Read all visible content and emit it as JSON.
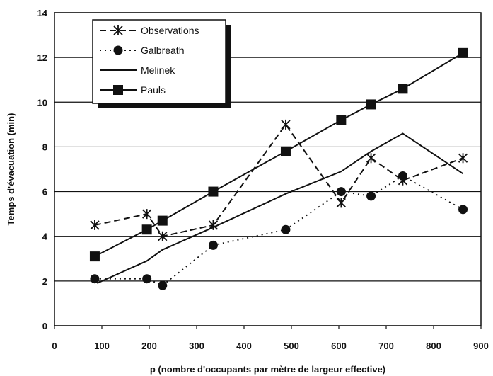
{
  "chart_data": {
    "type": "line",
    "title": "",
    "xlabel": "p (nombre d'occupants par mètre de largeur effective)",
    "ylabel": "Temps d'évacuation (min)",
    "xlim": [
      0,
      900
    ],
    "ylim": [
      0,
      14
    ],
    "xticks": [
      "0",
      "100",
      "200",
      "300",
      "400",
      "500",
      "600",
      "700",
      "800",
      "900"
    ],
    "yticks": [
      "0",
      "2",
      "4",
      "6",
      "8",
      "10",
      "12",
      "14"
    ],
    "grid": "horizontal",
    "legend": "top-left",
    "series": [
      {
        "name": "Observations",
        "marker": "star",
        "dash": "dash",
        "color": "#111111",
        "points": [
          [
            85,
            4.5
          ],
          [
            195,
            5.0
          ],
          [
            228,
            4.0
          ],
          [
            335,
            4.5
          ],
          [
            488,
            9.0
          ],
          [
            605,
            5.5
          ],
          [
            668,
            7.5
          ],
          [
            735,
            6.5
          ],
          [
            862,
            7.5
          ]
        ]
      },
      {
        "name": "Galbreath",
        "marker": "circle",
        "dash": "dot",
        "color": "#111111",
        "points": [
          [
            85,
            2.1
          ],
          [
            195,
            2.1
          ],
          [
            228,
            1.8
          ],
          [
            335,
            3.6
          ],
          [
            488,
            4.3
          ],
          [
            605,
            6.0
          ],
          [
            668,
            5.8
          ],
          [
            735,
            6.7
          ],
          [
            862,
            5.2
          ]
        ]
      },
      {
        "name": "Melinek",
        "marker": "none",
        "dash": "solid",
        "color": "#111111",
        "points": [
          [
            90,
            1.9
          ],
          [
            195,
            2.9
          ],
          [
            228,
            3.4
          ],
          [
            335,
            4.4
          ],
          [
            488,
            5.9
          ],
          [
            605,
            6.9
          ],
          [
            668,
            7.8
          ],
          [
            735,
            8.6
          ],
          [
            862,
            6.8
          ]
        ]
      },
      {
        "name": "Pauls",
        "marker": "square",
        "dash": "solid",
        "color": "#111111",
        "points": [
          [
            85,
            3.1
          ],
          [
            195,
            4.3
          ],
          [
            228,
            4.7
          ],
          [
            335,
            6.0
          ],
          [
            488,
            7.8
          ],
          [
            605,
            9.2
          ],
          [
            668,
            9.9
          ],
          [
            735,
            10.6
          ],
          [
            862,
            12.2
          ]
        ]
      }
    ]
  }
}
